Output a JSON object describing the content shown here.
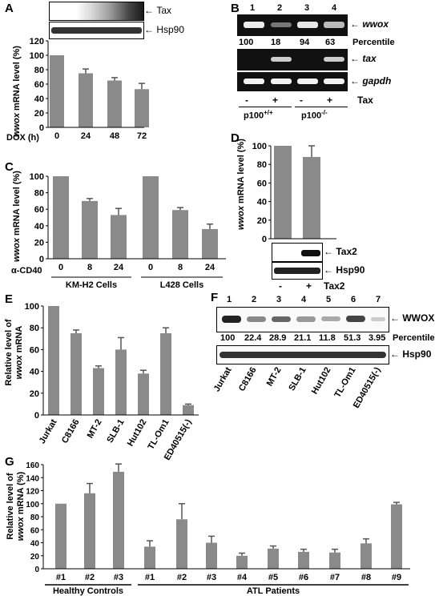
{
  "panels": {
    "A": {
      "label": "A",
      "blots": [
        "Tax",
        "Hsp90"
      ],
      "xaxis_title": "DOX (h)",
      "chart_data": {
        "type": "bar",
        "categories": [
          "0",
          "24",
          "48",
          "72"
        ],
        "values": [
          100,
          75,
          65,
          53
        ],
        "errors": [
          0,
          6,
          4,
          8
        ],
        "ylabel_prefix": "wwox",
        "ylabel": " mRNA level (%)",
        "ylim": [
          0,
          120
        ],
        "yticks": [
          0,
          20,
          40,
          60,
          80,
          100,
          120
        ]
      }
    },
    "B": {
      "label": "B",
      "lane_numbers": [
        "1",
        "2",
        "3",
        "4"
      ],
      "percentiles": [
        "100",
        "18",
        "94",
        "63"
      ],
      "percentile_label": "Percentile",
      "gels": [
        "wwox",
        "tax",
        "gapdh"
      ],
      "tax_signs": [
        "-",
        "+",
        "-",
        "+"
      ],
      "tax_label": "Tax",
      "groups": [
        {
          "base": "p100",
          "sup": "+/+"
        },
        {
          "base": "p100",
          "sup": "-/-"
        }
      ]
    },
    "C": {
      "label": "C",
      "chart_data": {
        "type": "bar",
        "categories": [
          "0",
          "8",
          "24",
          "0",
          "8",
          "24"
        ],
        "values": [
          100,
          70,
          53,
          100,
          59,
          36
        ],
        "errors": [
          0,
          3,
          8,
          0,
          3,
          6
        ],
        "ylabel_prefix": "wwox",
        "ylabel": " mRNA level (%)",
        "ylim": [
          0,
          100
        ],
        "yticks": [
          0,
          20,
          40,
          60,
          80,
          100
        ],
        "xprefix": "α-CD40",
        "groups": [
          "KM-H2 Cells",
          "L428 Cells"
        ]
      }
    },
    "D": {
      "label": "D",
      "chart_data": {
        "type": "bar",
        "categories": [
          "-",
          "+"
        ],
        "values": [
          100,
          88
        ],
        "errors": [
          0,
          12
        ],
        "ylabel_prefix": "wwox",
        "ylabel": " mRNA level (%)",
        "ylim": [
          0,
          100
        ],
        "yticks": [
          0,
          20,
          40,
          60,
          80,
          100
        ]
      },
      "blots": [
        "Tax2",
        "Hsp90"
      ],
      "tax_label": "Tax2"
    },
    "E": {
      "label": "E",
      "chart_data": {
        "type": "bar",
        "categories": [
          "Jurkat",
          "C8166",
          "MT-2",
          "SLB-1",
          "Hut102",
          "TL-Om1",
          "ED40515(-)"
        ],
        "values": [
          100,
          75,
          43,
          60,
          38,
          75,
          9
        ],
        "errors": [
          0,
          3,
          2,
          11,
          3,
          5,
          1
        ],
        "ylabel_line1": "Relative level of",
        "ylabel_prefix": "wwox",
        "ylabel": " mRNA",
        "ylim": [
          0,
          100
        ],
        "yticks": [
          0,
          20,
          40,
          60,
          80,
          100
        ]
      }
    },
    "F": {
      "label": "F",
      "lane_numbers": [
        "1",
        "2",
        "3",
        "4",
        "5",
        "6",
        "7"
      ],
      "percentiles": [
        "100",
        "22.4",
        "28.9",
        "21.1",
        "11.8",
        "51.3",
        "3.95"
      ],
      "percentile_label": "Percentile",
      "blots": [
        "WWOX",
        "Hsp90"
      ],
      "cell_lines": [
        "Jurkat",
        "C8166",
        "MT-2",
        "SLB-1",
        "Hut102",
        "TL-Om1",
        "ED40515(-)"
      ]
    },
    "G": {
      "label": "G",
      "chart_data": {
        "type": "bar",
        "categories": [
          "#1",
          "#2",
          "#3",
          "#1",
          "#2",
          "#3",
          "#4",
          "#5",
          "#6",
          "#7",
          "#8",
          "#9"
        ],
        "values": [
          100,
          116,
          149,
          34,
          76,
          40,
          20,
          31,
          26,
          25,
          39,
          99
        ],
        "errors": [
          0,
          15,
          12,
          9,
          24,
          10,
          4,
          4,
          4,
          5,
          7,
          3
        ],
        "ylabel_line1": "Relative level of",
        "ylabel_prefix": "wwox",
        "ylabel": " mRNA (%)",
        "ylim": [
          0,
          160
        ],
        "yticks": [
          0,
          20,
          40,
          60,
          80,
          100,
          120,
          140,
          160
        ],
        "groups": [
          "Healthy Controls",
          "ATL Patients"
        ]
      }
    }
  }
}
